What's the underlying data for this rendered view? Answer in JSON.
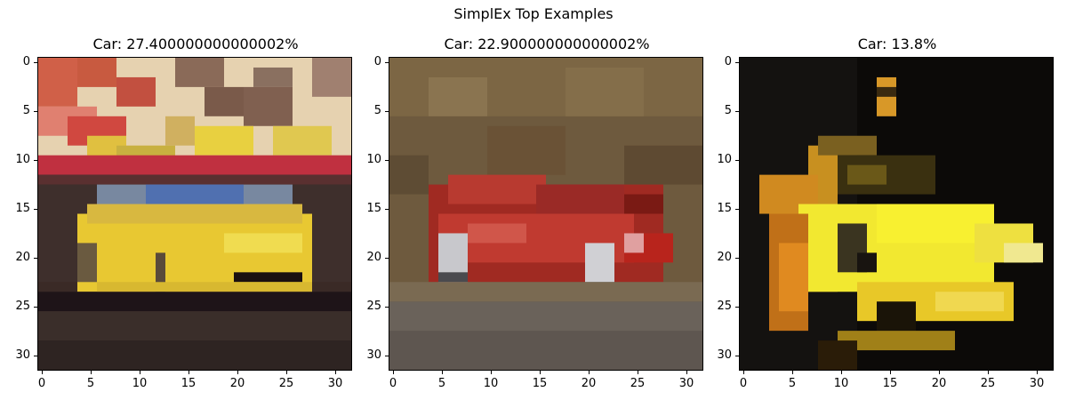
{
  "figure": {
    "suptitle": "SimplEx Top Examples"
  },
  "panels": [
    {
      "title": "Car: 27.400000000000002%",
      "image": "pixelated yellow car parked in front of a checkered red and beige wall",
      "y_ticks": [
        "0",
        "5",
        "10",
        "15",
        "20",
        "25",
        "30"
      ],
      "x_ticks": [
        "0",
        "5",
        "10",
        "15",
        "20",
        "25",
        "30"
      ]
    },
    {
      "title": "Car: 22.900000000000002%",
      "image": "pixelated red sports car driving on a road with brown background",
      "y_ticks": [
        "0",
        "5",
        "10",
        "15",
        "20",
        "25",
        "30"
      ],
      "x_ticks": [
        "0",
        "5",
        "10",
        "15",
        "20",
        "25",
        "30"
      ]
    },
    {
      "title": "Car: 13.8%",
      "image": "pixelated yellow supercar with open doors on black background",
      "y_ticks": [
        "0",
        "5",
        "10",
        "15",
        "20",
        "25",
        "30"
      ],
      "x_ticks": [
        "0",
        "5",
        "10",
        "15",
        "20",
        "25",
        "30"
      ]
    }
  ],
  "colors": {
    "yellow_car": "#e8c832",
    "red_car": "#b02020",
    "bright_yellow": "#f2e830"
  }
}
